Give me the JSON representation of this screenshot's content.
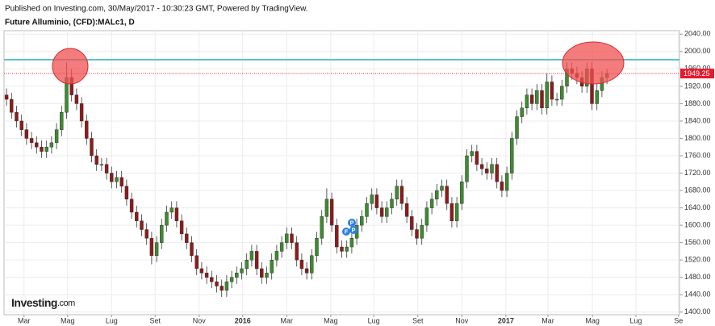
{
  "header": {
    "line1": "Published on Investing.com, 30/May/2017 - 10:30:23 GMT, Powered by TradingView.",
    "line2": "Future Alluminio, (CFD):MALc1, D"
  },
  "logo": [
    "Investing",
    ".com"
  ],
  "markers": [
    "P",
    "F",
    "P"
  ],
  "chart_data": {
    "type": "candlestick",
    "up_color": "#3d8b2f",
    "down_color": "#8e1b1b",
    "grid": true,
    "xlim": [
      0,
      135
    ],
    "ylim": [
      1394,
      2048
    ],
    "xticks": [
      {
        "value": 4.0,
        "label": "Mar"
      },
      {
        "value": 12.7,
        "label": "Mag"
      },
      {
        "value": 21.5,
        "label": "Lug"
      },
      {
        "value": 30.2,
        "label": "Set"
      },
      {
        "value": 39.0,
        "label": "Nov"
      },
      {
        "value": 47.7,
        "label": "2016"
      },
      {
        "value": 56.5,
        "label": "Mar"
      },
      {
        "value": 65.3,
        "label": "Mag"
      },
      {
        "value": 73.9,
        "label": "Lug"
      },
      {
        "value": 82.7,
        "label": "Set"
      },
      {
        "value": 91.5,
        "label": "Nov"
      },
      {
        "value": 100.3,
        "label": "2017"
      },
      {
        "value": 108.7,
        "label": "Mar"
      },
      {
        "value": 117.6,
        "label": "Mag"
      },
      {
        "value": 126.3,
        "label": "Lug"
      },
      {
        "value": 134.8,
        "label": "Se"
      }
    ],
    "yticks": [
      {
        "value": 1400,
        "label": "1400.00"
      },
      {
        "value": 1440,
        "label": "1440.00"
      },
      {
        "value": 1480,
        "label": "1480.00"
      },
      {
        "value": 1520,
        "label": "1520.00"
      },
      {
        "value": 1560,
        "label": "1560.00"
      },
      {
        "value": 1600,
        "label": "1600.00"
      },
      {
        "value": 1640,
        "label": "1640.00"
      },
      {
        "value": 1680,
        "label": "1680.00"
      },
      {
        "value": 1720,
        "label": "1720.00"
      },
      {
        "value": 1760,
        "label": "1760.00"
      },
      {
        "value": 1800,
        "label": "1800.00"
      },
      {
        "value": 1840,
        "label": "1840.00"
      },
      {
        "value": 1880,
        "label": "1880.00"
      },
      {
        "value": 1920,
        "label": "1920.00"
      },
      {
        "value": 1960,
        "label": "1960.00"
      },
      {
        "value": 2000,
        "label": "2000.00"
      },
      {
        "value": 2040,
        "label": "2040.00"
      }
    ],
    "resistance": {
      "value": 1981,
      "color": "#5bc4c8"
    },
    "last_color": "#e8192c",
    "open": [
      1900,
      1890,
      1860,
      1840,
      1820,
      1800,
      1790,
      1780,
      1770,
      1780,
      1790,
      1820,
      1860,
      1940,
      1900,
      1880,
      1840,
      1800,
      1760,
      1740,
      1740,
      1720,
      1700,
      1710,
      1690,
      1660,
      1630,
      1610,
      1590,
      1570,
      1530,
      1560,
      1600,
      1630,
      1640,
      1610,
      1580,
      1560,
      1530,
      1500,
      1490,
      1480,
      1470,
      1460,
      1450,
      1470,
      1480,
      1490,
      1500,
      1520,
      1540,
      1500,
      1480,
      1490,
      1520,
      1540,
      1560,
      1580,
      1560,
      1520,
      1500,
      1490,
      1530,
      1570,
      1620,
      1660,
      1600,
      1550,
      1540,
      1550,
      1570,
      1600,
      1620,
      1650,
      1670,
      1640,
      1620,
      1640,
      1660,
      1690,
      1650,
      1620,
      1590,
      1570,
      1600,
      1640,
      1660,
      1680,
      1690,
      1650,
      1610,
      1650,
      1700,
      1760,
      1770,
      1740,
      1730,
      1720,
      1740,
      1700,
      1680,
      1720,
      1800,
      1850,
      1870,
      1900,
      1880,
      1910,
      1870,
      1930,
      1890,
      1890,
      1920,
      1960,
      1950,
      1940,
      1920,
      1960,
      1880,
      1910,
      1940
    ],
    "high": [
      1915,
      1905,
      1875,
      1855,
      1835,
      1815,
      1805,
      1795,
      1795,
      1805,
      1835,
      1875,
      1975,
      1960,
      1915,
      1895,
      1855,
      1815,
      1775,
      1755,
      1755,
      1735,
      1725,
      1725,
      1705,
      1675,
      1645,
      1625,
      1605,
      1585,
      1575,
      1615,
      1645,
      1655,
      1655,
      1625,
      1595,
      1575,
      1545,
      1515,
      1505,
      1495,
      1485,
      1475,
      1485,
      1495,
      1505,
      1515,
      1535,
      1555,
      1555,
      1515,
      1505,
      1535,
      1555,
      1575,
      1595,
      1595,
      1575,
      1535,
      1515,
      1545,
      1585,
      1635,
      1685,
      1675,
      1615,
      1565,
      1565,
      1585,
      1615,
      1635,
      1665,
      1685,
      1685,
      1655,
      1655,
      1675,
      1705,
      1705,
      1665,
      1635,
      1605,
      1615,
      1655,
      1675,
      1695,
      1705,
      1705,
      1665,
      1665,
      1715,
      1775,
      1785,
      1785,
      1755,
      1745,
      1755,
      1755,
      1715,
      1735,
      1815,
      1865,
      1885,
      1915,
      1915,
      1925,
      1925,
      1950,
      1945,
      1905,
      1935,
      1975,
      1975,
      1965,
      1955,
      1975,
      1975,
      1925,
      1955,
      1960
    ],
    "low": [
      1875,
      1845,
      1825,
      1805,
      1785,
      1775,
      1765,
      1755,
      1755,
      1765,
      1775,
      1805,
      1845,
      1885,
      1865,
      1825,
      1785,
      1745,
      1725,
      1725,
      1705,
      1685,
      1685,
      1675,
      1645,
      1615,
      1595,
      1575,
      1555,
      1510,
      1515,
      1545,
      1585,
      1615,
      1595,
      1565,
      1545,
      1515,
      1485,
      1475,
      1465,
      1455,
      1445,
      1435,
      1435,
      1455,
      1465,
      1475,
      1485,
      1505,
      1485,
      1465,
      1465,
      1475,
      1505,
      1525,
      1545,
      1545,
      1505,
      1485,
      1475,
      1475,
      1515,
      1555,
      1605,
      1585,
      1535,
      1525,
      1525,
      1535,
      1555,
      1585,
      1605,
      1635,
      1625,
      1605,
      1605,
      1625,
      1645,
      1635,
      1605,
      1575,
      1555,
      1555,
      1585,
      1625,
      1645,
      1665,
      1635,
      1595,
      1595,
      1635,
      1685,
      1745,
      1725,
      1715,
      1705,
      1705,
      1685,
      1665,
      1665,
      1705,
      1785,
      1835,
      1855,
      1865,
      1865,
      1855,
      1855,
      1875,
      1875,
      1875,
      1905,
      1935,
      1925,
      1905,
      1905,
      1865,
      1865,
      1895,
      1925
    ],
    "close": [
      1890,
      1860,
      1840,
      1820,
      1800,
      1790,
      1780,
      1770,
      1780,
      1790,
      1820,
      1860,
      1940,
      1900,
      1880,
      1840,
      1800,
      1760,
      1740,
      1740,
      1720,
      1700,
      1710,
      1690,
      1660,
      1630,
      1610,
      1590,
      1570,
      1530,
      1560,
      1600,
      1630,
      1640,
      1610,
      1580,
      1560,
      1530,
      1500,
      1490,
      1480,
      1470,
      1460,
      1450,
      1470,
      1480,
      1490,
      1500,
      1520,
      1540,
      1500,
      1480,
      1490,
      1520,
      1540,
      1560,
      1580,
      1560,
      1520,
      1500,
      1490,
      1530,
      1570,
      1620,
      1660,
      1600,
      1550,
      1540,
      1550,
      1570,
      1600,
      1620,
      1650,
      1670,
      1640,
      1620,
      1640,
      1660,
      1690,
      1650,
      1620,
      1590,
      1570,
      1600,
      1640,
      1660,
      1680,
      1690,
      1650,
      1610,
      1650,
      1700,
      1760,
      1770,
      1740,
      1730,
      1720,
      1740,
      1700,
      1680,
      1720,
      1800,
      1850,
      1870,
      1900,
      1880,
      1910,
      1870,
      1930,
      1890,
      1890,
      1920,
      1960,
      1950,
      1940,
      1920,
      1960,
      1880,
      1910,
      1940,
      1949.25
    ]
  }
}
